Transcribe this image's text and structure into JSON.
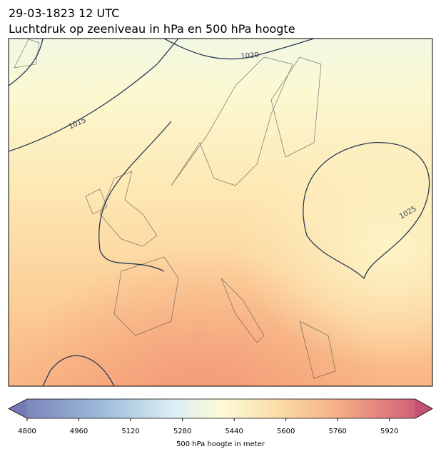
{
  "header": {
    "date": "29-03-1823 12 UTC",
    "title": "Luchtdruk op zeeniveau in hPa en 500 hPa hoogte"
  },
  "map": {
    "contour_labels": [
      "1015",
      "1020",
      "1025"
    ]
  },
  "colorbar": {
    "label": "500 hPa hoogte in meter",
    "lim": [
      4800,
      6000
    ],
    "ticks": [
      4800,
      4960,
      5120,
      5280,
      5440,
      5600,
      5760,
      5920
    ]
  }
}
